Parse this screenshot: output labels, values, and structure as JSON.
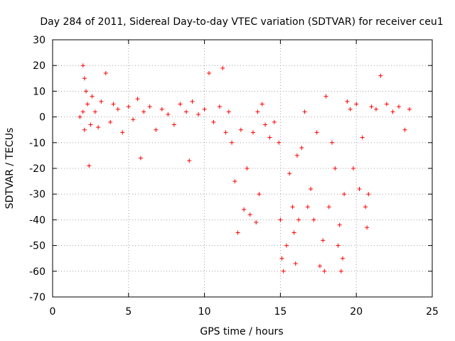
{
  "chart_data": {
    "type": "scatter",
    "title": "Day 284 of 2011, Sidereal Day-to-day VTEC variation (SDTVAR) for receiver ceu1",
    "xlabel": "GPS time / hours",
    "ylabel": "SDTVAR / TECUs",
    "xlim": [
      0,
      25
    ],
    "ylim": [
      -70,
      30
    ],
    "x_ticks": [
      0,
      5,
      10,
      15,
      20,
      25
    ],
    "y_ticks": [
      -70,
      -60,
      -50,
      -40,
      -30,
      -20,
      -10,
      0,
      10,
      20,
      30
    ],
    "x_tick_labels": [
      "0",
      "5",
      "10",
      "15",
      "20",
      "25"
    ],
    "y_tick_labels": [
      "-70",
      "-60",
      "-50",
      "-40",
      "-30",
      "-20",
      "-10",
      "0",
      "10",
      "20",
      "30"
    ],
    "grid": true,
    "marker": "+",
    "color": "#ff0000",
    "series": [
      {
        "name": "SDTVAR",
        "x": [
          1.8,
          2.0,
          2.0,
          2.1,
          2.1,
          2.2,
          2.3,
          2.4,
          2.5,
          2.6,
          2.8,
          3.0,
          3.2,
          3.5,
          3.8,
          4.0,
          4.3,
          4.6,
          5.0,
          5.3,
          5.6,
          5.8,
          6.0,
          6.4,
          6.8,
          7.2,
          7.6,
          8.0,
          8.4,
          8.8,
          9.0,
          9.2,
          9.6,
          10.0,
          10.3,
          10.6,
          11.0,
          11.2,
          11.4,
          11.6,
          11.8,
          12.0,
          12.2,
          12.4,
          12.6,
          12.8,
          13.0,
          13.2,
          13.4,
          13.5,
          13.6,
          13.8,
          14.0,
          14.3,
          14.6,
          14.9,
          15.0,
          15.1,
          15.2,
          15.4,
          15.6,
          15.8,
          15.9,
          16.0,
          16.1,
          16.2,
          16.4,
          16.6,
          16.8,
          17.0,
          17.2,
          17.4,
          17.6,
          17.8,
          17.9,
          18.0,
          18.2,
          18.4,
          18.6,
          18.8,
          18.9,
          19.0,
          19.1,
          19.2,
          19.4,
          19.6,
          19.8,
          20.0,
          20.2,
          20.4,
          20.6,
          20.7,
          20.8,
          21.0,
          21.3,
          21.6,
          22.0,
          22.4,
          22.8,
          23.2,
          23.5
        ],
        "y": [
          0,
          2,
          20,
          15,
          -5,
          10,
          5,
          -19,
          -3,
          8,
          2,
          -4,
          6,
          17,
          -2,
          5,
          3,
          -6,
          4,
          -1,
          7,
          -16,
          2,
          4,
          -5,
          3,
          1,
          -3,
          5,
          2,
          -17,
          6,
          1,
          3,
          17,
          -2,
          4,
          19,
          -6,
          2,
          -10,
          -25,
          -45,
          -5,
          -36,
          -20,
          -38,
          -6,
          -41,
          2,
          -30,
          5,
          -3,
          -8,
          -2,
          -10,
          -40,
          -55,
          -60,
          -50,
          -22,
          -35,
          -45,
          -57,
          -15,
          -40,
          -12,
          2,
          -35,
          -28,
          -40,
          -6,
          -58,
          -48,
          -60,
          8,
          -35,
          -10,
          -20,
          -50,
          -42,
          -60,
          -55,
          -30,
          6,
          3,
          -20,
          5,
          -28,
          -8,
          -35,
          -43,
          -30,
          4,
          3,
          16,
          5,
          2,
          4,
          -5,
          3
        ]
      }
    ]
  }
}
